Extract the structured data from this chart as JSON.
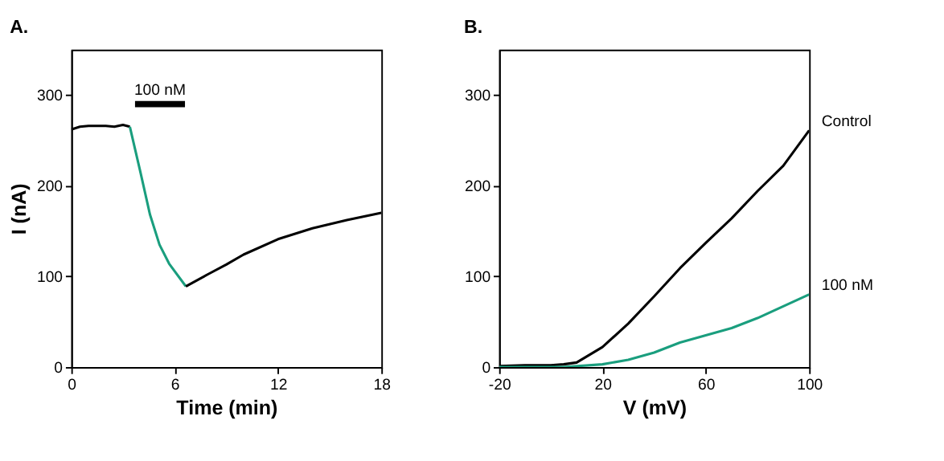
{
  "chart_data": [
    {
      "type": "line",
      "title": "A.",
      "xlabel": "Time (min)",
      "ylabel": "I (nA)",
      "xlim": [
        0,
        18
      ],
      "xticks": [
        0,
        6,
        12,
        18
      ],
      "ylim": [
        0,
        350
      ],
      "yticks": [
        0,
        100,
        200,
        300
      ],
      "grid": false,
      "series": [
        {
          "color": "#000000",
          "x": [
            0,
            0.5,
            1,
            1.5,
            2,
            2.5,
            3,
            3.4
          ],
          "values": [
            262,
            265,
            266,
            266,
            266,
            265,
            267,
            265
          ]
        },
        {
          "color": "#1a9e7e",
          "x": [
            3.4,
            4.0,
            4.57,
            5.12,
            5.68,
            6.65
          ],
          "values": [
            265,
            216,
            168,
            135,
            114,
            89
          ]
        },
        {
          "color": "#000000",
          "x": [
            6.65,
            8,
            9,
            10,
            12,
            14,
            16,
            18
          ],
          "values": [
            89,
            103,
            113,
            124,
            141,
            153,
            162,
            170
          ]
        },
        {
          "color": "#000000",
          "x": [
            3.7,
            6.6
          ],
          "values": [
            290,
            290
          ]
        }
      ],
      "annotations": [
        "100 nM"
      ]
    },
    {
      "type": "line",
      "title": "B.",
      "xlabel": "V (mV)",
      "xlim": [
        -20,
        100
      ],
      "xticks": [
        -20,
        20,
        60,
        100
      ],
      "ylim": [
        0,
        350
      ],
      "yticks": [
        0,
        100,
        200,
        300
      ],
      "grid": false,
      "series": [
        {
          "name": "Control",
          "color": "#000000",
          "x": [
            -20,
            -10,
            0,
            5,
            10,
            20,
            30,
            40,
            50,
            60,
            70,
            80,
            90,
            100
          ],
          "values": [
            1,
            2,
            2,
            3,
            5,
            22,
            48,
            78,
            109,
            137,
            164,
            194,
            222,
            261
          ]
        },
        {
          "name": "100 nM",
          "color": "#1a9e7e",
          "x": [
            -20,
            0,
            5,
            20,
            30,
            40,
            50,
            60,
            70,
            80,
            90,
            100
          ],
          "values": [
            0,
            0,
            0,
            3,
            8,
            16,
            27,
            35,
            43,
            54,
            67,
            80
          ]
        }
      ]
    }
  ]
}
